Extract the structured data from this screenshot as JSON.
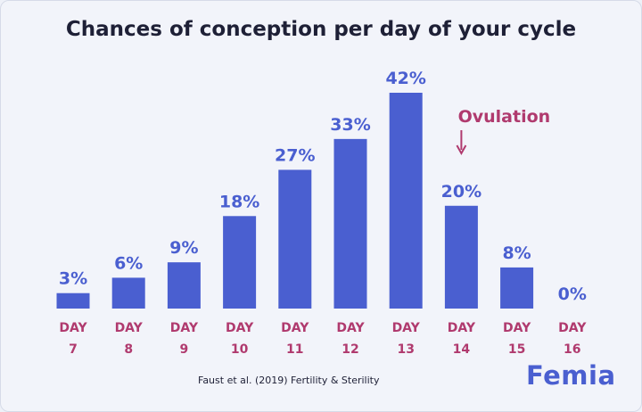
{
  "title": "Chances of conception per day of your cycle",
  "source": "Faust et al. (2019) Fertility & Sterility",
  "brand": "Femia",
  "colors": {
    "bar": "#4a5fd0",
    "value_label": "#4a5fd0",
    "day_label": "#b03a6e",
    "ovulation": "#b03a6e",
    "title": "#1e2036"
  },
  "chart_data": {
    "type": "bar",
    "categories": [
      "DAY 7",
      "DAY 8",
      "DAY 9",
      "DAY 10",
      "DAY 11",
      "DAY 12",
      "DAY 13",
      "DAY 14",
      "DAY 15",
      "DAY 16"
    ],
    "category_lines": [
      [
        "DAY",
        "7"
      ],
      [
        "DAY",
        "8"
      ],
      [
        "DAY",
        "9"
      ],
      [
        "DAY",
        "10"
      ],
      [
        "DAY",
        "11"
      ],
      [
        "DAY",
        "12"
      ],
      [
        "DAY",
        "13"
      ],
      [
        "DAY",
        "14"
      ],
      [
        "DAY",
        "15"
      ],
      [
        "DAY",
        "16"
      ]
    ],
    "values": [
      3,
      6,
      9,
      18,
      27,
      33,
      42,
      20,
      8,
      0
    ],
    "value_labels": [
      "3%",
      "6%",
      "9%",
      "18%",
      "27%",
      "33%",
      "42%",
      "20%",
      "8%",
      "0%"
    ],
    "ylim": [
      0,
      42
    ],
    "grid": false,
    "annotation": {
      "text": "Ovulation",
      "category": "DAY 14",
      "marker": "down-arrow"
    }
  }
}
